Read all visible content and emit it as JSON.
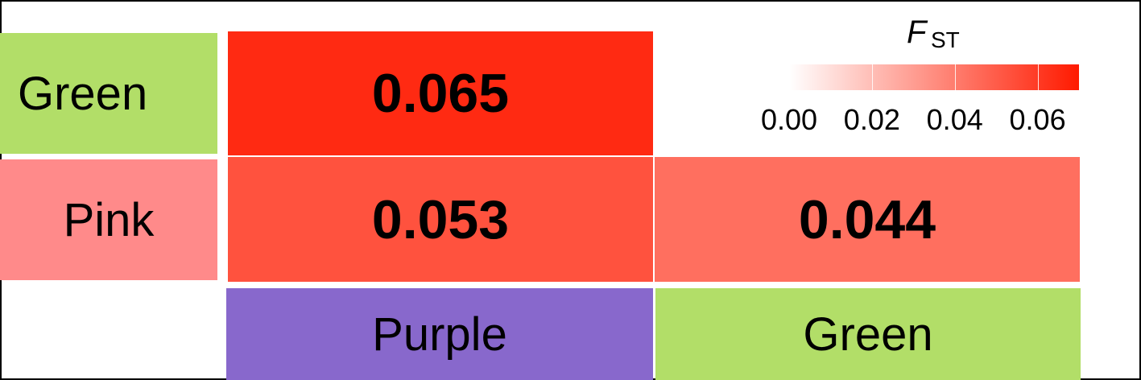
{
  "chart_data": {
    "type": "heatmap",
    "rows": [
      "Green",
      "Pink"
    ],
    "columns": [
      "Purple",
      "Green"
    ],
    "row_colors": [
      "#b2de68",
      "#ff8a8a"
    ],
    "column_colors": [
      "#8868cc",
      "#b2de68"
    ],
    "cells": [
      {
        "row": "Green",
        "column": "Purple",
        "value": 0.065,
        "label": "0.065"
      },
      {
        "row": "Pink",
        "column": "Purple",
        "value": 0.053,
        "label": "0.053"
      },
      {
        "row": "Pink",
        "column": "Green",
        "value": 0.044,
        "label": "0.044"
      }
    ],
    "legend": {
      "title": "F",
      "title_subscript": "ST",
      "placement": "top-right",
      "range": [
        0.0,
        0.07
      ],
      "ticks": [
        0.0,
        0.02,
        0.04,
        0.06
      ],
      "tick_labels": [
        "0.00",
        "0.02",
        "0.04",
        "0.06"
      ],
      "color_low": "#ffffff",
      "color_high": "#ff1a00"
    }
  }
}
